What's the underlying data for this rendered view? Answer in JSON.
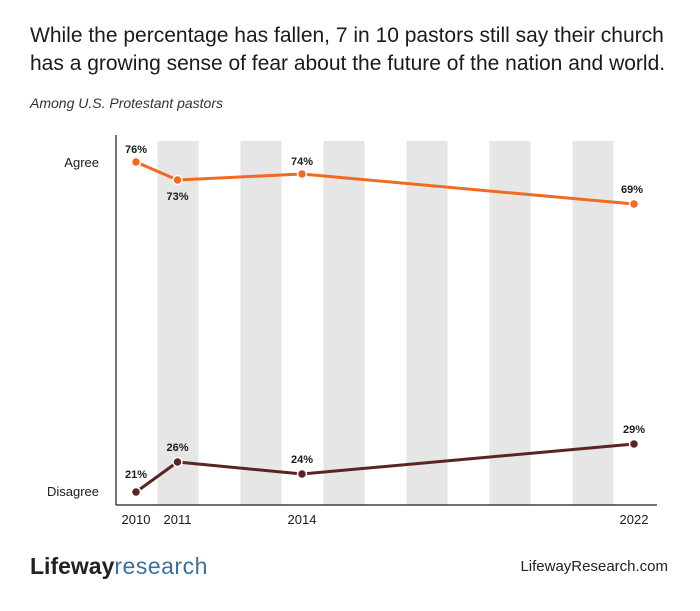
{
  "header": {
    "title": "While the percentage has fallen, 7 in 10 pastors still say their church has a growing sense of fear about the future of the nation and world.",
    "subtitle": "Among U.S. Protestant pastors"
  },
  "chart_data": {
    "type": "line",
    "x": [
      2010,
      2011,
      2014,
      2022
    ],
    "x_tick_labels": [
      "2010",
      "2011",
      "2014",
      "2022"
    ],
    "y_tick_labels": [
      "Agree",
      "Disagree"
    ],
    "series": [
      {
        "name": "Agree",
        "values": [
          76,
          73,
          74,
          69
        ],
        "labels": [
          "76%",
          "73%",
          "74%",
          "69%"
        ],
        "color": "#f26a21"
      },
      {
        "name": "Disagree",
        "values": [
          21,
          26,
          24,
          29
        ],
        "labels": [
          "21%",
          "26%",
          "24%",
          "29%"
        ],
        "color": "#5a2424"
      }
    ],
    "background_bands": "alternating light grey vertical bands, one per year from 2011 to 2021",
    "grid": false,
    "legend": "none"
  },
  "footer": {
    "brand_primary": "Lifeway",
    "brand_secondary": "research",
    "url": "LifewayResearch.com"
  },
  "colors": {
    "band": "#e6e6e6",
    "axis": "#1a1a1a",
    "brand_blue": "#3a6fa0"
  }
}
